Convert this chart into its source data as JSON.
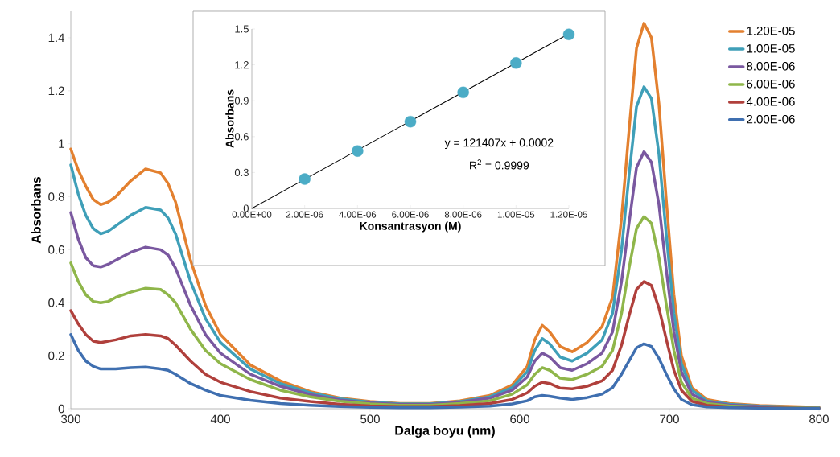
{
  "chart_data": [
    {
      "type": "line",
      "xlabel": "Dalga boyu (nm)",
      "ylabel": "Absorbans",
      "xlim": [
        300,
        800
      ],
      "ylim": [
        0,
        1.5
      ],
      "xticks": [
        300,
        400,
        500,
        600,
        700,
        800
      ],
      "yticks": [
        0,
        0.2,
        0.4,
        0.6,
        0.8,
        1,
        1.2,
        1.4
      ],
      "legend": "right",
      "grid": false,
      "x": [
        300,
        305,
        310,
        315,
        320,
        325,
        330,
        340,
        350,
        360,
        365,
        370,
        380,
        390,
        400,
        420,
        440,
        460,
        480,
        500,
        520,
        540,
        560,
        580,
        595,
        605,
        610,
        615,
        620,
        627,
        635,
        645,
        655,
        662,
        668,
        673,
        678,
        683,
        688,
        693,
        698,
        703,
        708,
        715,
        725,
        740,
        760,
        800
      ],
      "series": [
        {
          "name": "1.20E-05",
          "color": "#e3802f",
          "values": [
            0.98,
            0.9,
            0.84,
            0.79,
            0.77,
            0.78,
            0.8,
            0.86,
            0.905,
            0.89,
            0.85,
            0.78,
            0.56,
            0.39,
            0.28,
            0.165,
            0.105,
            0.065,
            0.04,
            0.027,
            0.02,
            0.02,
            0.03,
            0.05,
            0.09,
            0.16,
            0.26,
            0.315,
            0.29,
            0.235,
            0.215,
            0.25,
            0.31,
            0.42,
            0.72,
            1.05,
            1.36,
            1.455,
            1.4,
            1.15,
            0.78,
            0.43,
            0.2,
            0.08,
            0.035,
            0.02,
            0.012,
            0.005
          ]
        },
        {
          "name": "1.00E-05",
          "color": "#3f9fb8",
          "values": [
            0.92,
            0.81,
            0.73,
            0.68,
            0.66,
            0.67,
            0.69,
            0.73,
            0.76,
            0.75,
            0.72,
            0.66,
            0.48,
            0.34,
            0.25,
            0.15,
            0.095,
            0.06,
            0.037,
            0.025,
            0.018,
            0.018,
            0.027,
            0.045,
            0.08,
            0.14,
            0.22,
            0.265,
            0.245,
            0.195,
            0.18,
            0.21,
            0.26,
            0.36,
            0.6,
            0.88,
            1.14,
            1.215,
            1.17,
            0.96,
            0.65,
            0.36,
            0.17,
            0.07,
            0.03,
            0.017,
            0.01,
            0.004
          ]
        },
        {
          "name": "8.00E-06",
          "color": "#7a58a0",
          "values": [
            0.74,
            0.64,
            0.57,
            0.54,
            0.535,
            0.545,
            0.56,
            0.59,
            0.61,
            0.6,
            0.58,
            0.53,
            0.39,
            0.28,
            0.21,
            0.13,
            0.085,
            0.053,
            0.033,
            0.022,
            0.016,
            0.016,
            0.024,
            0.04,
            0.07,
            0.12,
            0.18,
            0.21,
            0.195,
            0.155,
            0.145,
            0.17,
            0.21,
            0.29,
            0.48,
            0.7,
            0.91,
            0.97,
            0.93,
            0.77,
            0.52,
            0.29,
            0.14,
            0.055,
            0.025,
            0.014,
            0.008,
            0.003
          ]
        },
        {
          "name": "6.00E-06",
          "color": "#8fb64a",
          "values": [
            0.55,
            0.48,
            0.43,
            0.405,
            0.4,
            0.405,
            0.42,
            0.44,
            0.455,
            0.45,
            0.43,
            0.4,
            0.3,
            0.22,
            0.17,
            0.11,
            0.07,
            0.045,
            0.028,
            0.018,
            0.013,
            0.013,
            0.02,
            0.03,
            0.055,
            0.09,
            0.13,
            0.155,
            0.145,
            0.115,
            0.11,
            0.13,
            0.16,
            0.22,
            0.36,
            0.53,
            0.68,
            0.725,
            0.7,
            0.57,
            0.39,
            0.22,
            0.1,
            0.04,
            0.02,
            0.011,
            0.006,
            0.002
          ]
        },
        {
          "name": "4.00E-06",
          "color": "#b0403c",
          "values": [
            0.37,
            0.32,
            0.28,
            0.255,
            0.25,
            0.255,
            0.26,
            0.275,
            0.28,
            0.275,
            0.265,
            0.24,
            0.18,
            0.13,
            0.1,
            0.065,
            0.04,
            0.027,
            0.017,
            0.011,
            0.008,
            0.008,
            0.012,
            0.02,
            0.035,
            0.06,
            0.085,
            0.1,
            0.095,
            0.078,
            0.075,
            0.085,
            0.105,
            0.145,
            0.24,
            0.35,
            0.45,
            0.48,
            0.465,
            0.38,
            0.26,
            0.145,
            0.07,
            0.028,
            0.013,
            0.007,
            0.004,
            0.001
          ]
        },
        {
          "name": "2.00E-06",
          "color": "#3f6fb0",
          "values": [
            0.28,
            0.22,
            0.18,
            0.16,
            0.15,
            0.15,
            0.15,
            0.155,
            0.157,
            0.15,
            0.145,
            0.13,
            0.095,
            0.07,
            0.05,
            0.032,
            0.02,
            0.013,
            0.008,
            0.005,
            0.004,
            0.004,
            0.006,
            0.01,
            0.018,
            0.03,
            0.045,
            0.05,
            0.047,
            0.04,
            0.035,
            0.042,
            0.055,
            0.08,
            0.13,
            0.18,
            0.23,
            0.245,
            0.235,
            0.19,
            0.13,
            0.075,
            0.035,
            0.015,
            0.007,
            0.004,
            0.002,
            0.001
          ]
        }
      ]
    },
    {
      "type": "scatter",
      "xlabel": "Konsantrasyon (M)",
      "ylabel": "Absorbans",
      "xlim": [
        0,
        1.2e-05
      ],
      "ylim": [
        0,
        1.5
      ],
      "grid": false,
      "xticks": [
        {
          "value": 0,
          "label": "0.00E+00"
        },
        {
          "value": 2e-06,
          "label": "2.00E-06"
        },
        {
          "value": 4e-06,
          "label": "4.00E-06"
        },
        {
          "value": 6e-06,
          "label": "6.00E-06"
        },
        {
          "value": 8e-06,
          "label": "8.00E-06"
        },
        {
          "value": 1e-05,
          "label": "1.00E-05"
        },
        {
          "value": 1.2e-05,
          "label": "1.20E-05"
        }
      ],
      "yticks": [
        0,
        0.3,
        0.6,
        0.9,
        1.2,
        1.5
      ],
      "x": [
        2e-06,
        4e-06,
        6e-06,
        8e-06,
        1e-05,
        1.2e-05
      ],
      "series": [
        {
          "type": "scatter",
          "marker": "circle",
          "color": "#4bacc6",
          "values": [
            0.245,
            0.48,
            0.725,
            0.97,
            1.215,
            1.455
          ]
        },
        {
          "type": "line",
          "color": "#000000",
          "x": [
            0,
            1.2e-05
          ],
          "marker": "none",
          "values": [
            0,
            1.46
          ]
        }
      ],
      "annotations": [
        "y = 121407x + 0.0002",
        "R$^{2}$ = 0.9999"
      ]
    }
  ]
}
